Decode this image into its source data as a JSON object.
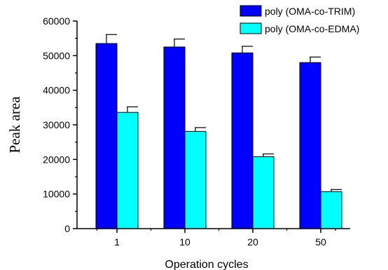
{
  "chart_data": {
    "type": "bar",
    "title": "",
    "xlabel": "Operation cycles",
    "ylabel": "Peak area",
    "categories": [
      "1",
      "10",
      "20",
      "50"
    ],
    "ylim": [
      0,
      60000
    ],
    "yticks": [
      "0",
      "10000",
      "20000",
      "30000",
      "40000",
      "50000",
      "60000"
    ],
    "error_bars": true,
    "legend_position": "top-right",
    "grid": false,
    "series": [
      {
        "name": "poly (OMA-co-TRIM)",
        "color": "#0000ff",
        "values": [
          53500,
          52500,
          50800,
          48000
        ],
        "errors": [
          2600,
          2300,
          1900,
          1600
        ]
      },
      {
        "name": "poly (OMA-co-EDMA)",
        "color": "#00ffff",
        "values": [
          33600,
          28100,
          20800,
          10700
        ],
        "errors": [
          1600,
          1100,
          800,
          600
        ]
      }
    ]
  }
}
